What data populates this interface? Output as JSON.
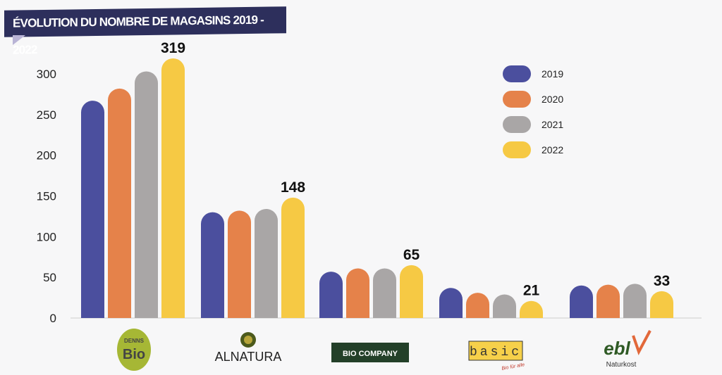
{
  "chart_data": {
    "type": "bar",
    "title": "ÉVOLUTION DU NOMBRE DE MAGASINS 2019 - 2022",
    "xlabel": "",
    "ylabel": "",
    "ylim": [
      0,
      300
    ],
    "yticks": [
      "0",
      "50",
      "100",
      "150",
      "200",
      "250",
      "300"
    ],
    "categories": [
      "Denns Bio",
      "Alnatura",
      "Bio Company",
      "basic",
      "ebl Naturkost"
    ],
    "series": [
      {
        "name": "2019",
        "color": "#4b4f9e",
        "values": [
          267,
          130,
          57,
          37,
          40
        ]
      },
      {
        "name": "2020",
        "color": "#e5824a",
        "values": [
          282,
          132,
          61,
          31,
          41
        ]
      },
      {
        "name": "2021",
        "color": "#a9a6a6",
        "values": [
          303,
          134,
          61,
          29,
          42
        ]
      },
      {
        "name": "2022",
        "color": "#f6c944",
        "values": [
          319,
          148,
          65,
          21,
          33
        ]
      }
    ],
    "data_labels": [
      "319",
      "148",
      "65",
      "21",
      "33"
    ],
    "legend": "top-right",
    "logos": {
      "denns_top": "DENNS",
      "denns_bottom": "Bio",
      "alnatura": "ALNATURA",
      "biocompany": "BIO COMPANY",
      "basic": "basic",
      "basic_tag": "Bio für alle",
      "ebl": "ebl",
      "ebl_sub": "Naturkost"
    }
  }
}
